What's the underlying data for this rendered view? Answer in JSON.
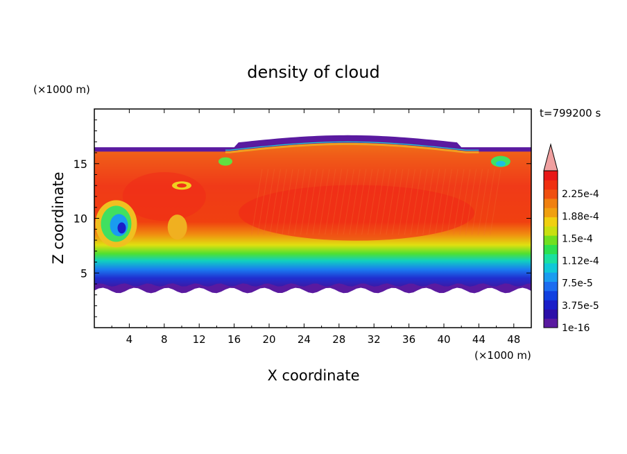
{
  "chart_data": {
    "type": "heatmap",
    "title": "density of cloud",
    "xlabel": "X coordinate",
    "ylabel": "Z coordinate",
    "x_unit": "(×1000 m)",
    "y_unit": "(×1000 m)",
    "time_label": "t=799200 s",
    "xlim": [
      0,
      50
    ],
    "ylim": [
      0,
      20
    ],
    "xticks": [
      "4",
      "8",
      "12",
      "16",
      "20",
      "24",
      "28",
      "32",
      "36",
      "40",
      "44",
      "48"
    ],
    "yticks": [
      "5",
      "10",
      "15"
    ],
    "colorbar": {
      "labels": [
        "1e-16",
        "3.75e-5",
        "7.5e-5",
        "1.12e-4",
        "1.5e-4",
        "1.88e-4",
        "2.25e-4"
      ],
      "levels": 17,
      "extend": "max",
      "colors": [
        "#5a1aa0",
        "#2c0fa8",
        "#1a1ec8",
        "#1040e0",
        "#1c6cf0",
        "#1a9cf0",
        "#10c8d8",
        "#1ae0a0",
        "#2ce050",
        "#70e020",
        "#c8e010",
        "#f0d010",
        "#f0a010",
        "#f08010",
        "#f05010",
        "#f03010",
        "#e81818"
      ],
      "extend_color": "#f0a0a0"
    },
    "field_summary": [
      {
        "z_range": [
          3.5,
          4.5
        ],
        "x_range": [
          0,
          50
        ],
        "value": "1e-16 to 3.75e-5"
      },
      {
        "z_range": [
          4.5,
          7
        ],
        "x_range": [
          0,
          50
        ],
        "value": "7.5e-5 to 1.88e-4"
      },
      {
        "z_range": [
          7,
          16.5
        ],
        "x_range": [
          0,
          50
        ],
        "value": "2.25e-4 and above"
      },
      {
        "z_range": [
          16.5,
          17
        ],
        "x_range": [
          16,
          42
        ],
        "value": "1e-16 to 1.5e-4"
      }
    ]
  }
}
